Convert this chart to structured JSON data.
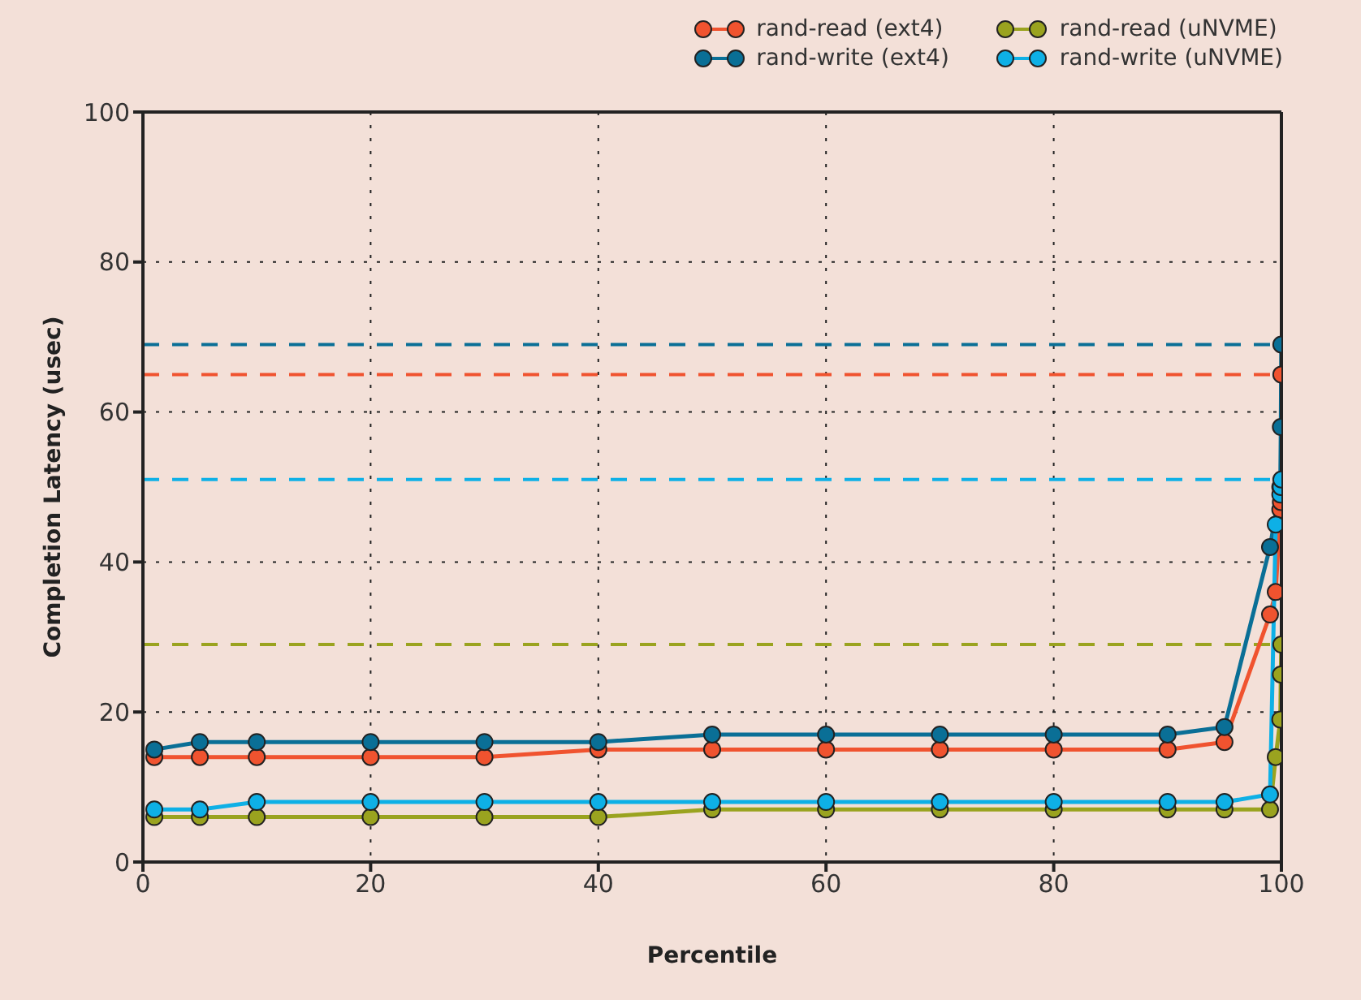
{
  "chart_data": {
    "type": "line",
    "xlabel": "Percentile",
    "ylabel": "Completion Latency (usec)",
    "x": [
      1,
      5,
      10,
      20,
      30,
      40,
      50,
      60,
      70,
      80,
      90,
      95,
      99,
      99.5,
      99.9,
      99.95,
      99.99
    ],
    "series": [
      {
        "name": "rand-read (ext4)",
        "color": "#f0532f",
        "values": [
          14,
          14,
          14,
          14,
          14,
          15,
          15,
          15,
          15,
          15,
          15,
          16,
          33,
          36,
          47,
          48,
          65
        ]
      },
      {
        "name": "rand-write (ext4)",
        "color": "#0a6f96",
        "values": [
          15,
          16,
          16,
          16,
          16,
          16,
          17,
          17,
          17,
          17,
          17,
          18,
          42,
          null,
          50,
          58,
          69
        ]
      },
      {
        "name": "rand-read (uNVME)",
        "color": "#9aa31f",
        "values": [
          6,
          6,
          6,
          6,
          6,
          6,
          7,
          7,
          7,
          7,
          7,
          7,
          7,
          14,
          19,
          25,
          29
        ]
      },
      {
        "name": "rand-write (uNVME)",
        "color": "#0eb0e6",
        "values": [
          7,
          7,
          8,
          8,
          8,
          8,
          8,
          8,
          8,
          8,
          8,
          8,
          9,
          45,
          49,
          50,
          51
        ]
      }
    ],
    "ref_lines": [
      {
        "axis": "y",
        "value": 69,
        "color": "#0a6f96",
        "line_style": "dashed"
      },
      {
        "axis": "y",
        "value": 65,
        "color": "#f0532f",
        "line_style": "dashed"
      },
      {
        "axis": "y",
        "value": 51,
        "color": "#0eb0e6",
        "line_style": "dashed"
      },
      {
        "axis": "y",
        "value": 29,
        "color": "#9aa31f",
        "line_style": "dashed"
      }
    ],
    "xlim": [
      0,
      100
    ],
    "xticks": [
      0,
      20,
      40,
      60,
      80,
      100
    ],
    "ylim": [
      0,
      100
    ],
    "yticks": [
      0,
      20,
      40,
      60,
      80,
      100
    ],
    "grid": true,
    "legend": "top right",
    "marker": "circle",
    "line_style": "solid"
  }
}
